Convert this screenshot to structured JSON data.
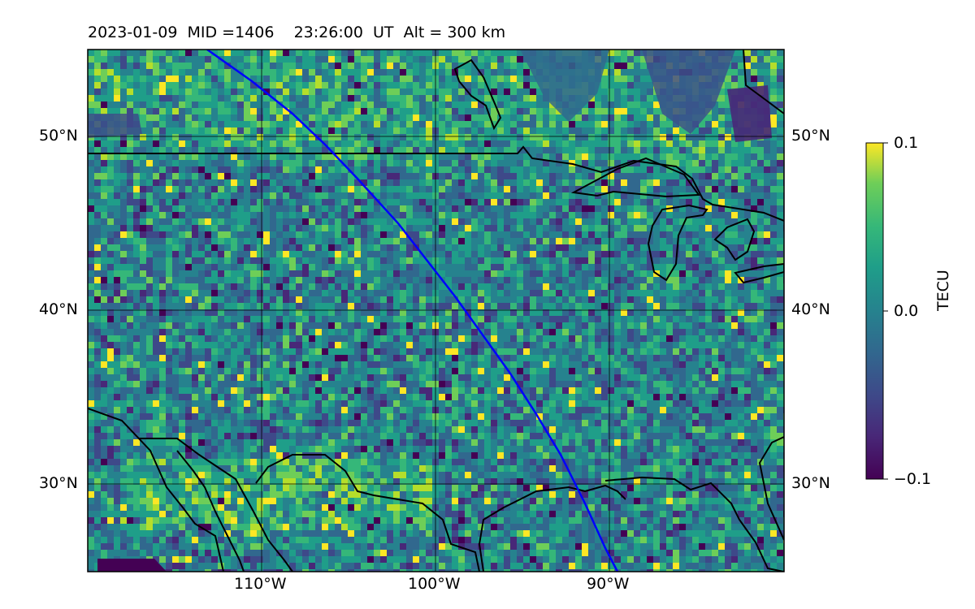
{
  "title": "2023-01-09  MID =1406    23:26:00  UT  Alt = 300 km",
  "map": {
    "lon_range": [
      -120,
      -80
    ],
    "lat_range": [
      25,
      55
    ],
    "lat_labels": [
      {
        "lat": 50,
        "text": "50°N"
      },
      {
        "lat": 40,
        "text": "40°N"
      },
      {
        "lat": 30,
        "text": "30°N"
      }
    ],
    "lon_labels": [
      {
        "lon": -110,
        "text": "110°W"
      },
      {
        "lon": -100,
        "text": "100°W"
      },
      {
        "lon": -90,
        "text": "90°W"
      }
    ],
    "field": "TEC perturbation (viridis colormap)",
    "track_color": "#0000ff",
    "coast_color": "#000000"
  },
  "colorbar": {
    "label": "TECU",
    "colormap": "viridis",
    "min": -0.1,
    "max": 0.1,
    "ticks": [
      "0.1",
      "0.0",
      "−0.1"
    ]
  }
}
